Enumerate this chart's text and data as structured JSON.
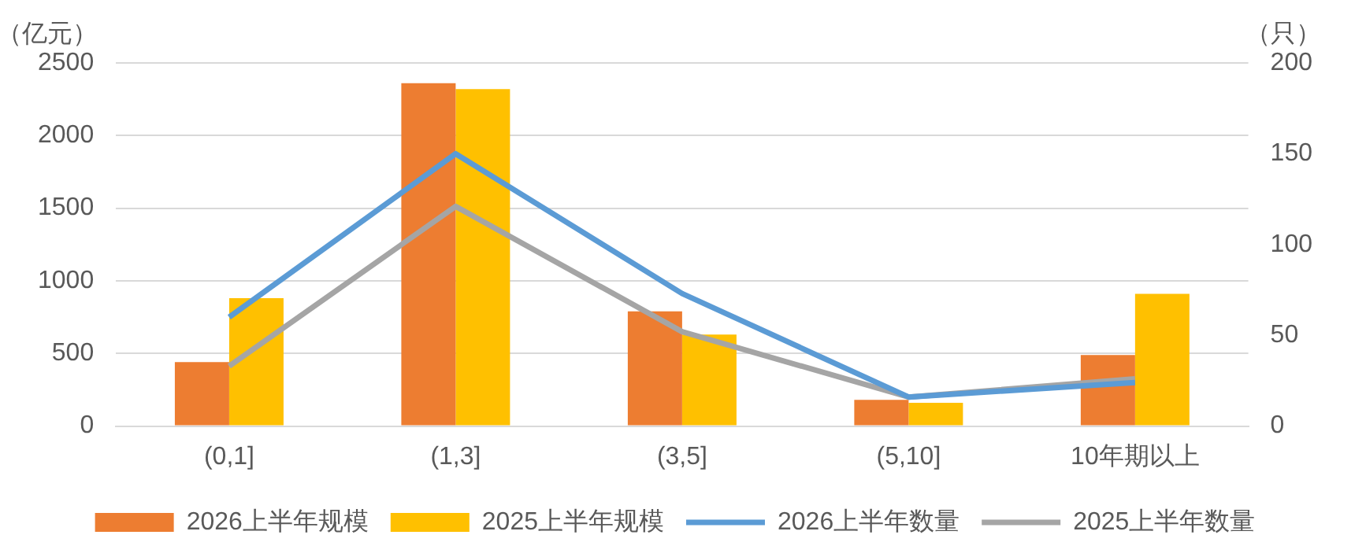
{
  "chart_data": {
    "type": "bar",
    "ylabel": "（亿元）",
    "y2label": "（只）",
    "categories": [
      "(0,1]",
      "(1,3]",
      "(3,5]",
      "(5,10]",
      "10年期以上"
    ],
    "series": [
      {
        "name": "2026上半年规模",
        "color": "#ed7d31",
        "values": [
          440,
          2360,
          790,
          180,
          490
        ]
      },
      {
        "name": "2025上半年规模",
        "color": "#ffc000",
        "values": [
          880,
          2320,
          630,
          160,
          910
        ]
      },
      {
        "name": "2026上半年数量",
        "type": "line",
        "axis": "y2",
        "color": "#5b9bd5",
        "values": [
          60,
          150,
          73,
          16,
          24
        ]
      },
      {
        "name": "2025上半年数量",
        "type": "line",
        "axis": "y2",
        "color": "#a5a5a5",
        "values": [
          33,
          121,
          52,
          16,
          26
        ]
      }
    ],
    "ylim": [
      0,
      2500
    ],
    "yticks": [
      0,
      500,
      1000,
      1500,
      2000,
      2500
    ],
    "y2lim": [
      0,
      200
    ],
    "y2ticks": [
      0,
      50,
      100,
      150,
      200
    ],
    "grid": "y",
    "legend": "bottom",
    "marker": "none",
    "line_style": "solid"
  }
}
